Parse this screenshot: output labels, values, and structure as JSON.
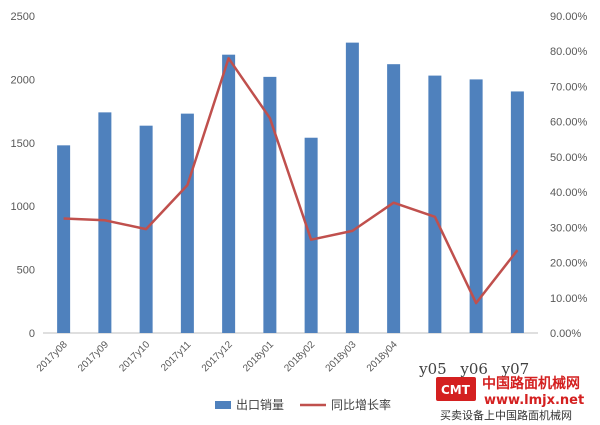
{
  "chart_data": {
    "type": "bar+line",
    "categories": [
      "2017y08",
      "2017y09",
      "2017y10",
      "2017y11",
      "2017y12",
      "2018y01",
      "2018y02",
      "2018y03",
      "2018y04",
      "y05",
      "y06",
      "y07"
    ],
    "series": [
      {
        "name": "出口销量",
        "type": "bar",
        "axis": "left",
        "color": "#4f81bd",
        "values": [
          1480,
          1740,
          1635,
          1730,
          2195,
          2020,
          1540,
          2290,
          2120,
          2030,
          2000,
          1905
        ]
      },
      {
        "name": "同比增长率",
        "type": "line",
        "axis": "right",
        "color": "#c0504d",
        "values": [
          0.325,
          0.32,
          0.295,
          0.42,
          0.78,
          0.61,
          0.265,
          0.29,
          0.37,
          0.33,
          0.085,
          0.235
        ]
      }
    ],
    "y_left": {
      "ylim": [
        0,
        2500
      ],
      "ticks": [
        0,
        500,
        1000,
        1500,
        2000,
        2500
      ]
    },
    "y_right": {
      "ylim": [
        0,
        0.9
      ],
      "ticks": [
        "0.00%",
        "10.00%",
        "20.00%",
        "30.00%",
        "40.00%",
        "50.00%",
        "60.00%",
        "70.00%",
        "80.00%",
        "90.00%"
      ]
    },
    "legend_position": "bottom",
    "grid": false
  },
  "watermark": {
    "logo_text": "CMT",
    "site_name": "中国路面机械网",
    "url": "www.lmjx.net",
    "slogan": "买卖设备上中国路面机械网"
  },
  "colors": {
    "bar": "#4f81bd",
    "line": "#c0504d",
    "axis": "#bfbfbf",
    "brand_red": "#d42020"
  }
}
